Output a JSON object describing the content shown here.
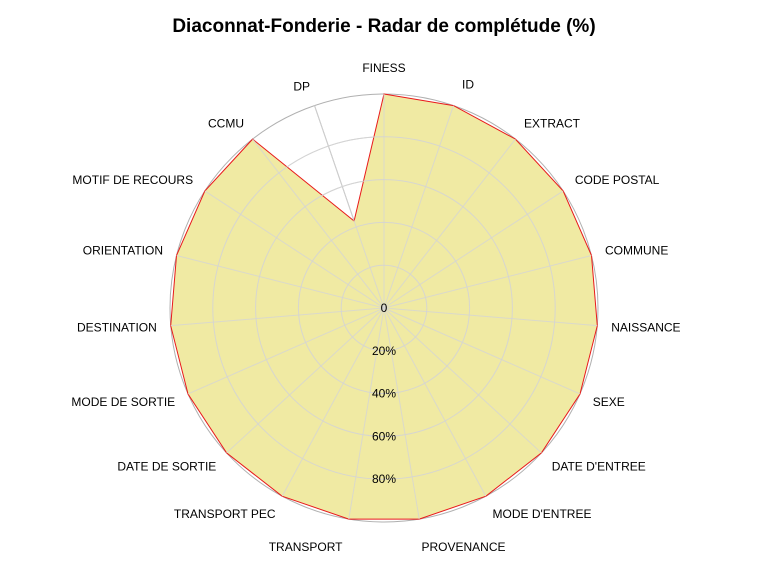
{
  "chart_data": {
    "type": "radar",
    "title": "Diaconnat-Fonderie - Radar de complétude (%)",
    "categories": [
      "FINESS",
      "ID",
      "EXTRACT",
      "CODE POSTAL",
      "COMMUNE",
      "NAISSANCE",
      "SEXE",
      "DATE D'ENTREE",
      "MODE D'ENTREE",
      "PROVENANCE",
      "TRANSPORT",
      "TRANSPORT PEC",
      "DATE DE SORTIE",
      "MODE DE SORTIE",
      "DESTINATION",
      "ORIENTATION",
      "MOTIF DE RECOURS",
      "CCMU",
      "DP"
    ],
    "series": [
      {
        "values": [
          100,
          100,
          100,
          100,
          100,
          100,
          100,
          100,
          100,
          100,
          100,
          100,
          100,
          100,
          100,
          100,
          100,
          100,
          43
        ]
      }
    ],
    "tick_labels": [
      "0",
      "20%",
      "40%",
      "60%",
      "80%"
    ],
    "rlim": [
      0,
      100
    ],
    "fill_color": "#f0eaa3",
    "line_color": "#e8191b",
    "grid_color": "#d4d4d4",
    "outer_ring_color": "#b0b0b0"
  }
}
